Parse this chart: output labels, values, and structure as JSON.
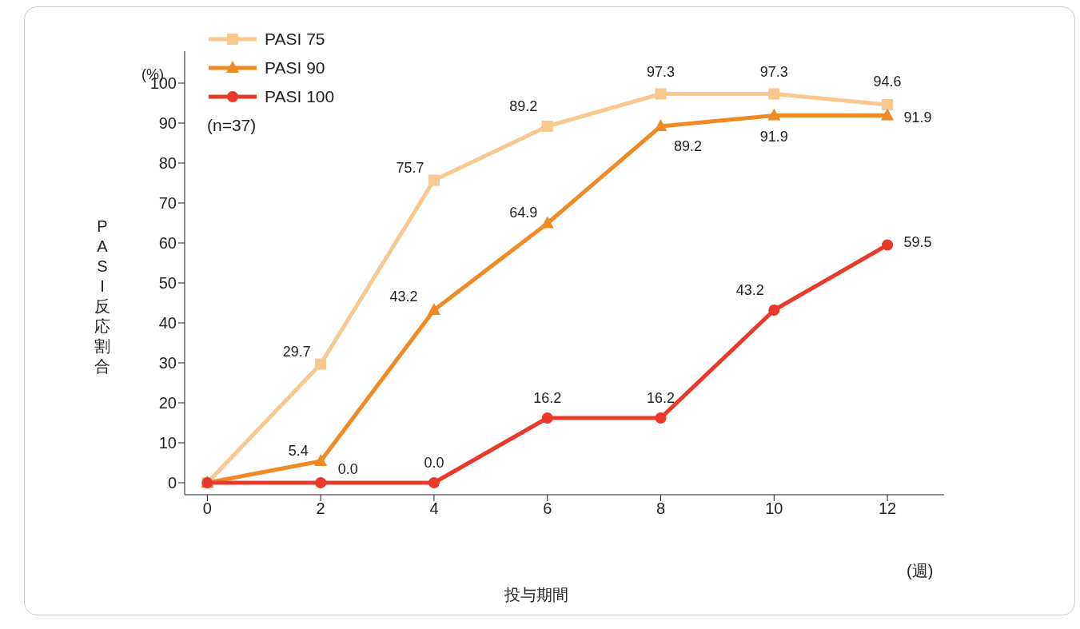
{
  "chart_data": {
    "type": "line",
    "ylabel": "PASI反応割合",
    "xlabel": "投与期間",
    "annotations": [
      "(%)",
      "(週)",
      "(n=37)"
    ],
    "x": [
      0,
      2,
      4,
      6,
      8,
      10,
      12
    ],
    "series": [
      {
        "name": "PASI 75",
        "color": "#f9c88f",
        "marker": "square",
        "values": [
          0,
          29.7,
          75.7,
          89.2,
          97.3,
          97.3,
          94.6
        ],
        "value_labels": [
          null,
          "29.7",
          "75.7",
          "89.2",
          "97.3",
          "97.3",
          "94.6"
        ]
      },
      {
        "name": "PASI 90",
        "color": "#f08a24",
        "marker": "triangle",
        "values": [
          0,
          5.4,
          43.2,
          64.9,
          89.2,
          91.9,
          91.9
        ],
        "value_labels": [
          null,
          "5.4",
          "43.2",
          "64.9",
          "89.2",
          "91.9",
          "91.9"
        ]
      },
      {
        "name": "PASI 100",
        "color": "#e8392b",
        "marker": "circle",
        "values": [
          0,
          0.0,
          0.0,
          16.2,
          16.2,
          43.2,
          59.5
        ],
        "value_labels": [
          null,
          "0.0",
          "0.0",
          "16.2",
          "16.2",
          "43.2",
          "59.5"
        ]
      }
    ],
    "xlim": [
      -0.4,
      13
    ],
    "xticks": [
      0,
      2,
      4,
      6,
      8,
      10,
      12
    ],
    "ylim": [
      -3,
      108
    ],
    "yticks": [
      0,
      10,
      20,
      30,
      40,
      50,
      60,
      70,
      80,
      90,
      100
    ],
    "grid": false,
    "legend": "top left"
  }
}
